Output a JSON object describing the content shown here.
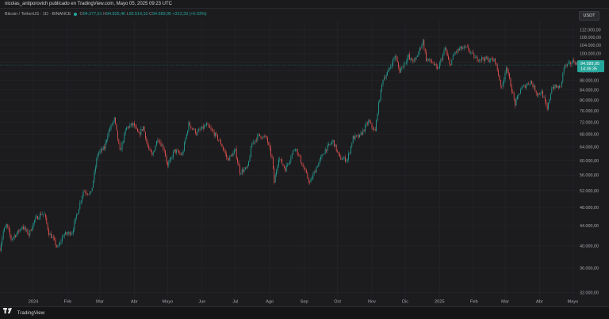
{
  "header": {
    "attribution": "nicolas_antiporovich publicado en TradingView.com, Mayo 05, 2025 09:23 UTC"
  },
  "legend": {
    "symbol": "Bitcoin / TetherUS · 1D · BINANCE",
    "o_key": "O",
    "o_val": "94.277,61",
    "h_key": "H",
    "h_val": "94.825,46",
    "l_key": "L",
    "l_val": "93.514,10",
    "c_key": "C",
    "c_val": "94.589,95",
    "change": "+312,33 (+0.33%)"
  },
  "currency_button": "USDT",
  "price_tag": {
    "price": "94.589,95",
    "countdown": "14:36:35",
    "color": "#26a69a"
  },
  "footer": {
    "brand": "TradingView"
  },
  "colors": {
    "up": "#26a69a",
    "down": "#ef5350",
    "background": "#1c1c1f",
    "grid": "#26272b"
  },
  "chart_data": {
    "type": "candlestick",
    "y_scale": "log",
    "ylim": [
      31000,
      116000
    ],
    "y_ticks": [
      {
        "value": 112000,
        "label": "112.000,00"
      },
      {
        "value": 108000,
        "label": "108.000,00"
      },
      {
        "value": 104000,
        "label": "104.000,00"
      },
      {
        "value": 100000,
        "label": "100.000,00"
      },
      {
        "value": 96000,
        "label": "96.000,00"
      },
      {
        "value": 92000,
        "label": "92.000,00"
      },
      {
        "value": 88000,
        "label": "88.000,00"
      },
      {
        "value": 84000,
        "label": "84.000,00"
      },
      {
        "value": 80000,
        "label": "80.000,00"
      },
      {
        "value": 76000,
        "label": "76.000,00"
      },
      {
        "value": 72000,
        "label": "72.000,00"
      },
      {
        "value": 68000,
        "label": "68.000,00"
      },
      {
        "value": 64000,
        "label": "64.000,00"
      },
      {
        "value": 60000,
        "label": "60.000,00"
      },
      {
        "value": 56000,
        "label": "56.000,00"
      },
      {
        "value": 52000,
        "label": "52.000,00"
      },
      {
        "value": 48000,
        "label": "48.000,00"
      },
      {
        "value": 44000,
        "label": "44.000,00"
      },
      {
        "value": 40000,
        "label": "40.000,00"
      },
      {
        "value": 36000,
        "label": "36.000,00"
      },
      {
        "value": 32000,
        "label": "32.000,00"
      }
    ],
    "x_labels": [
      "2024",
      "Feb",
      "Mar",
      "Abr",
      "Mayo",
      "Jun",
      "Jul",
      "Ago",
      "Sep",
      "Oct",
      "Nov",
      "Dic",
      "2025",
      "Feb",
      "Mar",
      "Abr",
      "Mayo"
    ],
    "x_range": [
      "2023-12-02",
      "2025-05-05"
    ],
    "x_label_dates": [
      "2024-01-01",
      "2024-02-01",
      "2024-03-01",
      "2024-04-01",
      "2024-05-01",
      "2024-06-01",
      "2024-07-01",
      "2024-08-01",
      "2024-09-01",
      "2024-10-01",
      "2024-11-01",
      "2024-12-01",
      "2025-01-01",
      "2025-02-01",
      "2025-03-01",
      "2025-04-01",
      "2025-05-01"
    ],
    "close_path": [
      [
        "2023-12-02",
        39500
      ],
      [
        "2023-12-05",
        42800
      ],
      [
        "2023-12-08",
        44100
      ],
      [
        "2023-12-12",
        41300
      ],
      [
        "2023-12-18",
        42600
      ],
      [
        "2023-12-22",
        43900
      ],
      [
        "2023-12-28",
        42200
      ],
      [
        "2024-01-02",
        45100
      ],
      [
        "2024-01-08",
        46600
      ],
      [
        "2024-01-11",
        46400
      ],
      [
        "2024-01-15",
        42500
      ],
      [
        "2024-01-19",
        41200
      ],
      [
        "2024-01-23",
        39500
      ],
      [
        "2024-01-28",
        42100
      ],
      [
        "2024-02-05",
        42700
      ],
      [
        "2024-02-10",
        47100
      ],
      [
        "2024-02-15",
        51900
      ],
      [
        "2024-02-22",
        51300
      ],
      [
        "2024-02-28",
        62000
      ],
      [
        "2024-03-05",
        63700
      ],
      [
        "2024-03-08",
        68200
      ],
      [
        "2024-03-14",
        73100
      ],
      [
        "2024-03-19",
        62500
      ],
      [
        "2024-03-25",
        70200
      ],
      [
        "2024-03-31",
        71300
      ],
      [
        "2024-04-05",
        67800
      ],
      [
        "2024-04-09",
        70500
      ],
      [
        "2024-04-13",
        64200
      ],
      [
        "2024-04-17",
        61300
      ],
      [
        "2024-04-22",
        66800
      ],
      [
        "2024-04-28",
        63200
      ],
      [
        "2024-05-01",
        58300
      ],
      [
        "2024-05-07",
        62900
      ],
      [
        "2024-05-14",
        61600
      ],
      [
        "2024-05-20",
        71400
      ],
      [
        "2024-05-27",
        68400
      ],
      [
        "2024-06-05",
        71100
      ],
      [
        "2024-06-12",
        68200
      ],
      [
        "2024-06-18",
        65100
      ],
      [
        "2024-06-24",
        60300
      ],
      [
        "2024-07-01",
        62800
      ],
      [
        "2024-07-05",
        56800
      ],
      [
        "2024-07-12",
        57900
      ],
      [
        "2024-07-16",
        65100
      ],
      [
        "2024-07-22",
        67600
      ],
      [
        "2024-07-29",
        66800
      ],
      [
        "2024-08-03",
        60700
      ],
      [
        "2024-08-05",
        54100
      ],
      [
        "2024-08-09",
        60900
      ],
      [
        "2024-08-15",
        57600
      ],
      [
        "2024-08-24",
        64100
      ],
      [
        "2024-08-30",
        59000
      ],
      [
        "2024-09-06",
        53900
      ],
      [
        "2024-09-12",
        58100
      ],
      [
        "2024-09-20",
        63200
      ],
      [
        "2024-09-27",
        65800
      ],
      [
        "2024-10-03",
        60700
      ],
      [
        "2024-10-10",
        60300
      ],
      [
        "2024-10-15",
        66900
      ],
      [
        "2024-10-21",
        67300
      ],
      [
        "2024-10-29",
        72300
      ],
      [
        "2024-11-04",
        68800
      ],
      [
        "2024-11-06",
        75900
      ],
      [
        "2024-11-11",
        88700
      ],
      [
        "2024-11-15",
        91000
      ],
      [
        "2024-11-22",
        98900
      ],
      [
        "2024-11-26",
        91900
      ],
      [
        "2024-12-04",
        98800
      ],
      [
        "2024-12-05",
        97000
      ],
      [
        "2024-12-10",
        96600
      ],
      [
        "2024-12-17",
        106100
      ],
      [
        "2024-12-20",
        97300
      ],
      [
        "2024-12-26",
        95600
      ],
      [
        "2024-12-30",
        92300
      ],
      [
        "2025-01-06",
        102300
      ],
      [
        "2025-01-10",
        94500
      ],
      [
        "2025-01-15",
        100500
      ],
      [
        "2025-01-20",
        102300
      ],
      [
        "2025-01-26",
        102500
      ],
      [
        "2025-02-02",
        97600
      ],
      [
        "2025-02-10",
        97400
      ],
      [
        "2025-02-20",
        96600
      ],
      [
        "2025-02-26",
        84300
      ],
      [
        "2025-03-02",
        94200
      ],
      [
        "2025-03-10",
        78500
      ],
      [
        "2025-03-15",
        84300
      ],
      [
        "2025-03-24",
        87500
      ],
      [
        "2025-03-30",
        82400
      ],
      [
        "2025-04-03",
        83100
      ],
      [
        "2025-04-08",
        76300
      ],
      [
        "2025-04-12",
        85200
      ],
      [
        "2025-04-20",
        85100
      ],
      [
        "2025-04-23",
        93700
      ],
      [
        "2025-04-28",
        95000
      ],
      [
        "2025-05-02",
        96500
      ],
      [
        "2025-05-05",
        94590
      ]
    ]
  }
}
